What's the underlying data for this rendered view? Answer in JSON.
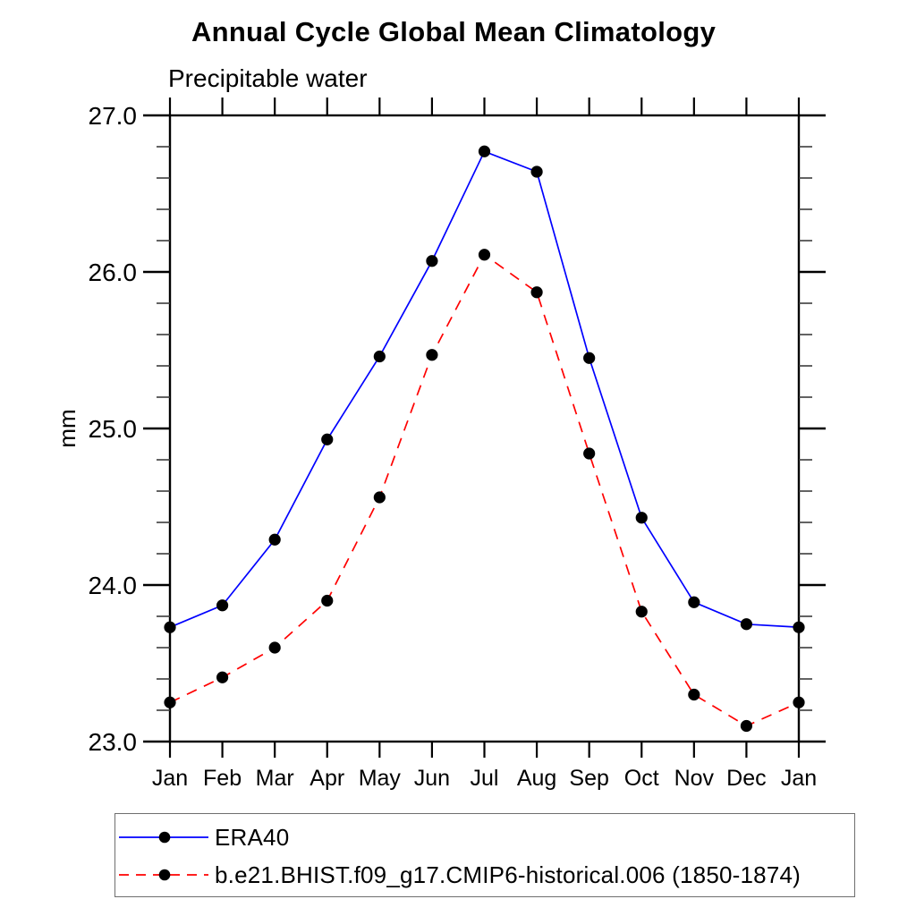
{
  "header": {
    "title": "Annual Cycle Global Mean Climatology",
    "subtitle": "Precipitable water"
  },
  "chart_data": {
    "type": "line",
    "title": "Annual Cycle Global Mean Climatology",
    "subtitle": "Precipitable water",
    "xlabel": "",
    "ylabel": "mm",
    "categories": [
      "Jan",
      "Feb",
      "Mar",
      "Apr",
      "May",
      "Jun",
      "Jul",
      "Aug",
      "Sep",
      "Oct",
      "Nov",
      "Dec",
      "Jan"
    ],
    "series": [
      {
        "name": "ERA40",
        "color": "#0000ff",
        "line_style": "solid",
        "marker": "filled-circle",
        "marker_color": "#000000",
        "values": [
          23.73,
          23.87,
          24.29,
          24.93,
          25.46,
          26.07,
          26.77,
          26.64,
          25.45,
          24.43,
          23.89,
          23.75,
          23.73
        ]
      },
      {
        "name": "b.e21.BHIST.f09_g17.CMIP6-historical.006 (1850-1874)",
        "color": "#ff0000",
        "line_style": "dashed",
        "marker": "filled-circle",
        "marker_color": "#000000",
        "values": [
          23.25,
          23.41,
          23.6,
          23.9,
          24.56,
          25.47,
          26.11,
          25.87,
          24.84,
          23.83,
          23.3,
          23.1,
          23.25
        ]
      }
    ],
    "ylim": [
      23.0,
      27.0
    ],
    "ytick_step": 1.0,
    "yminor_step": 0.2,
    "ytick_labels": [
      "23.0",
      "24.0",
      "25.0",
      "26.0",
      "27.0"
    ],
    "grid": false,
    "legend_position": "bottom-left-box",
    "axis_color": "#000000"
  }
}
